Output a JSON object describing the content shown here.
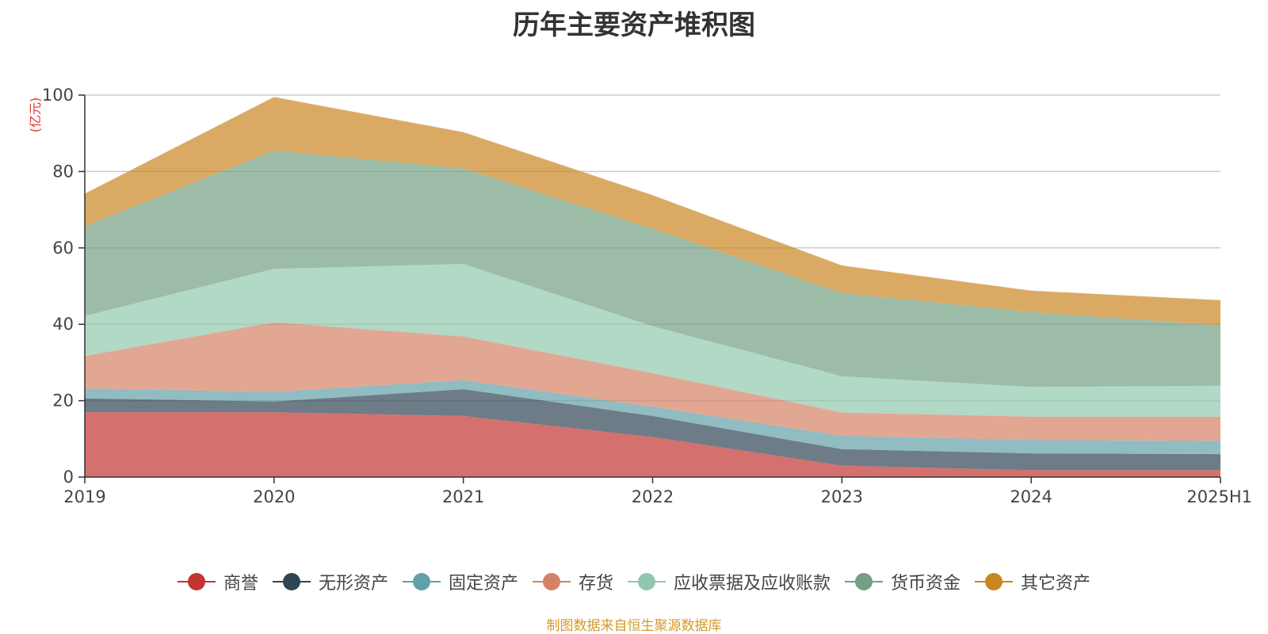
{
  "chart_data": {
    "type": "area",
    "stacked": true,
    "title": "历年主要资产堆积图",
    "unit": "(亿元)",
    "categories": [
      "2019",
      "2020",
      "2021",
      "2022",
      "2023",
      "2024",
      "2025H1"
    ],
    "ylim": [
      0,
      100
    ],
    "yticks": [
      0,
      20,
      40,
      60,
      80,
      100
    ],
    "grid": true,
    "legend_position": "bottom",
    "series": [
      {
        "name": "商誉",
        "color": "#c23531",
        "values": [
          17,
          17,
          16,
          10.5,
          3,
          1.8,
          1.8
        ]
      },
      {
        "name": "无形资产",
        "color": "#2f4554",
        "values": [
          3.6,
          2.8,
          7,
          5.5,
          4.3,
          4.4,
          4.2
        ]
      },
      {
        "name": "固定资产",
        "color": "#61a0a8",
        "values": [
          2.6,
          2.5,
          2.4,
          2.4,
          3.5,
          3.5,
          3.5
        ]
      },
      {
        "name": "存货",
        "color": "#d48265",
        "values": [
          8.5,
          18.2,
          11.4,
          8.8,
          6.1,
          6.1,
          6.3
        ]
      },
      {
        "name": "应收票据及应收账款",
        "color": "#91c7ae",
        "values": [
          10.5,
          14,
          19,
          12.3,
          9.5,
          7.8,
          8.1
        ]
      },
      {
        "name": "货币资金",
        "color": "#749f83",
        "values": [
          23.5,
          31,
          25,
          25.5,
          21.8,
          19.6,
          15.8
        ]
      },
      {
        "name": "其它资产",
        "color": "#ca8622",
        "values": [
          8.5,
          14,
          9.5,
          8.8,
          7.2,
          5.6,
          6.6
        ]
      }
    ]
  },
  "source_note": "制图数据来自恒生聚源数据库"
}
